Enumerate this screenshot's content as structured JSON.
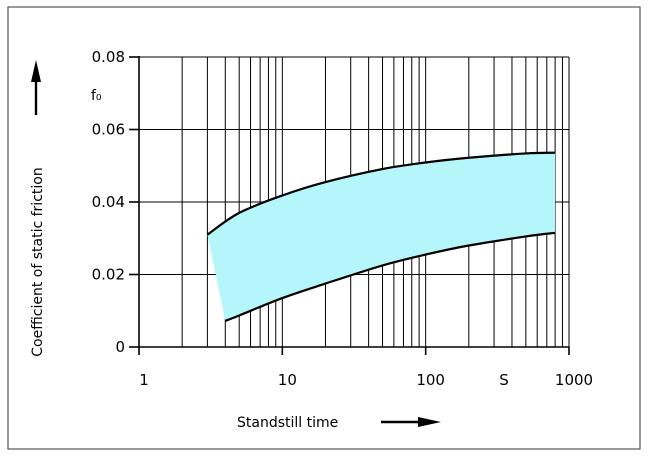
{
  "chart_data": {
    "type": "area",
    "xscale": "log",
    "xlim": [
      1,
      1000
    ],
    "ylim": [
      0,
      0.08
    ],
    "xticks": [
      1,
      10,
      100,
      1000
    ],
    "xtick_labels": [
      "1",
      "10",
      "100",
      "1000"
    ],
    "xunit_label": "S",
    "yticks": [
      0,
      0.02,
      0.04,
      0.06,
      0.08
    ],
    "ytick_labels": [
      "0",
      "0.02",
      "0.04",
      "0.06",
      "0.08"
    ],
    "ysymbol": "f₀",
    "xlabel": "Standstill time",
    "ylabel": "Coefficient of static friction",
    "grid": true,
    "fill_color": "#b5f6fa",
    "series": [
      {
        "x": [
          3,
          5,
          10,
          20,
          50,
          100,
          200,
          500,
          800
        ],
        "values": [
          0.031,
          0.037,
          0.0418,
          0.0455,
          0.0491,
          0.0509,
          0.0522,
          0.0534,
          0.0536
        ]
      },
      {
        "x": [
          4,
          5,
          10,
          20,
          50,
          100,
          200,
          500,
          800
        ],
        "values": [
          0.0072,
          0.0087,
          0.0135,
          0.0175,
          0.0225,
          0.0255,
          0.028,
          0.0305,
          0.0315
        ]
      }
    ]
  }
}
